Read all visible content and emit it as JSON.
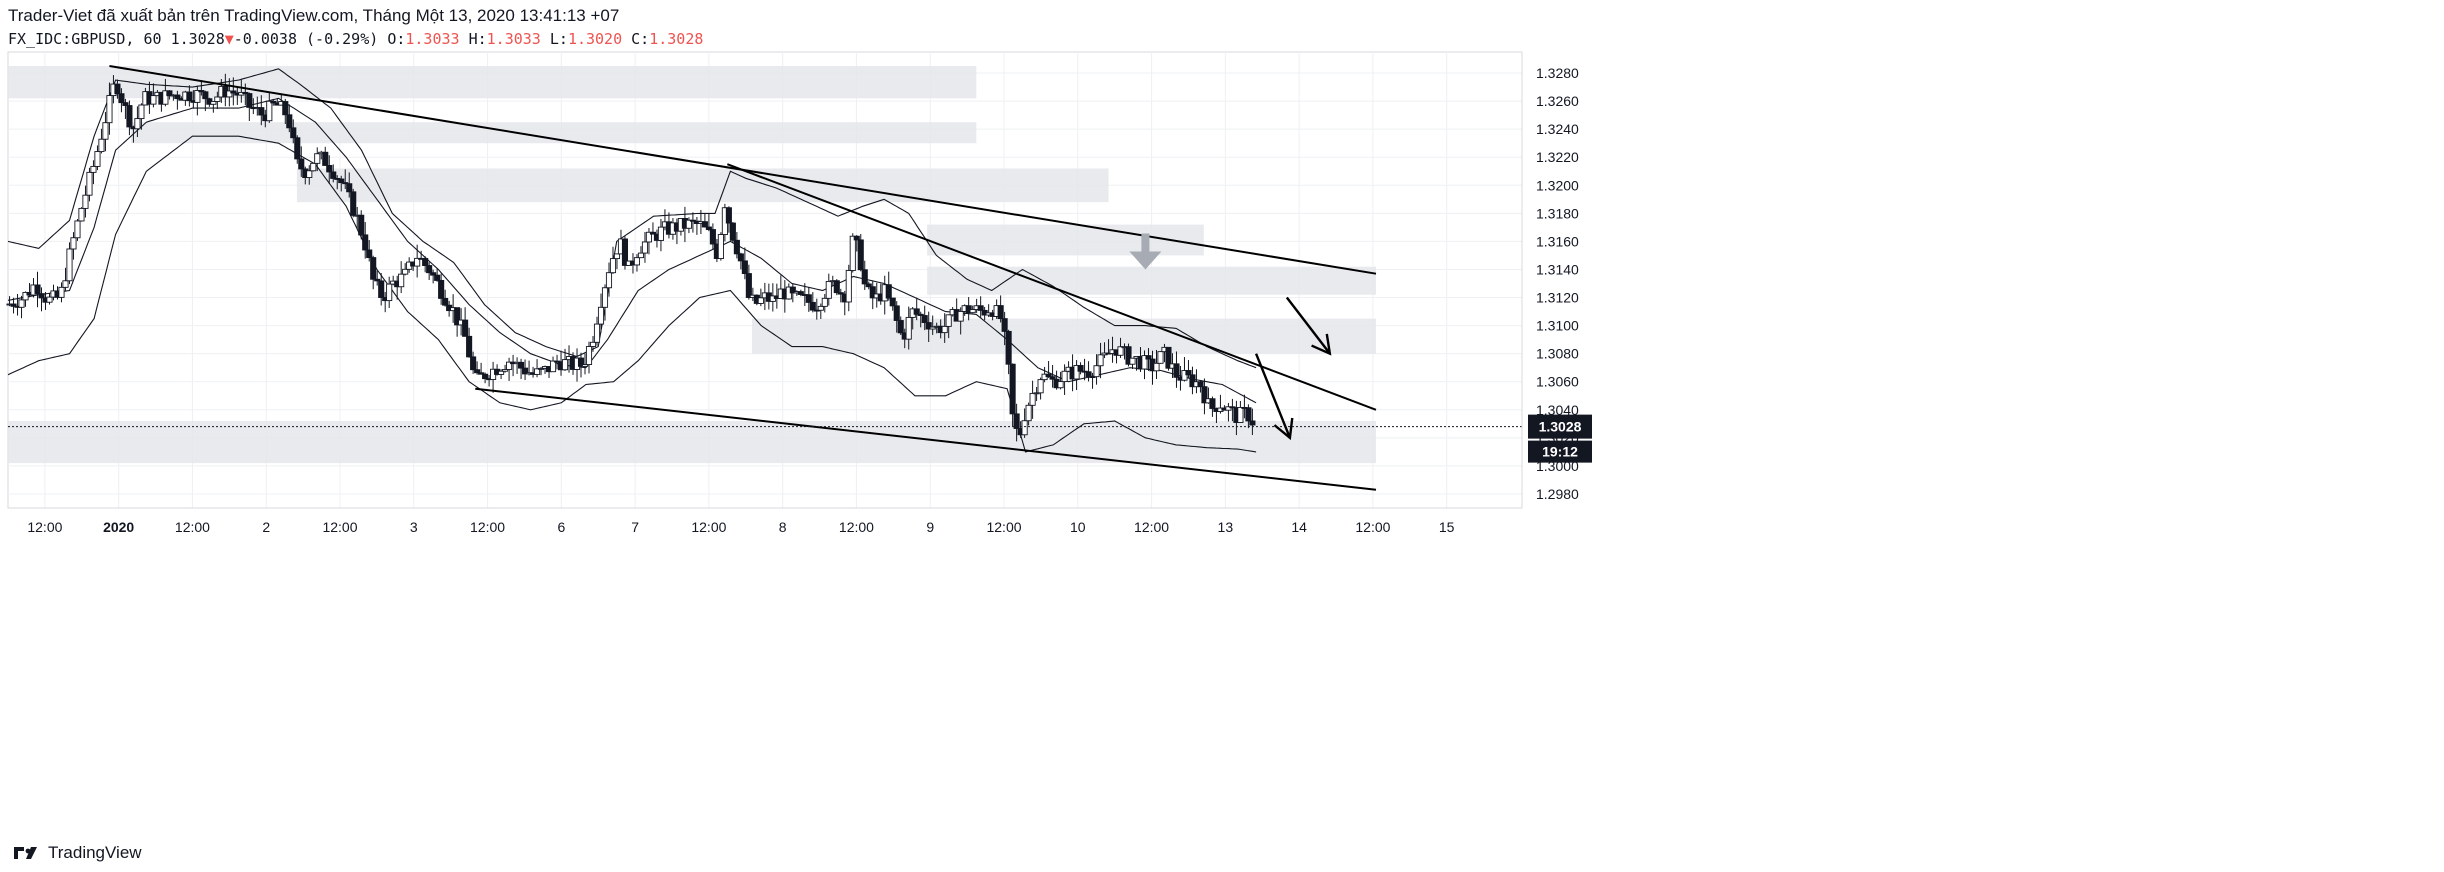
{
  "header": {
    "publisher_line": "Trader-Viet đã xuất bản trên TradingView.com, Tháng Một 13, 2020 13:41:13 +07",
    "symbol": "FX_IDC:GBPUSD, 60",
    "last": "1.3028",
    "change_arrow": "▼",
    "change": "-0.0038 (-0.29%)",
    "o_label": "O:",
    "o_value": "1.3033",
    "h_label": "H:",
    "h_value": "1.3033",
    "l_label": "L:",
    "l_value": "1.3020",
    "c_label": "C:",
    "c_value": "1.3028"
  },
  "footer": {
    "brand": "TradingView"
  },
  "colors": {
    "up": "#ffffff",
    "down": "#131722",
    "wick": "#131722",
    "zone": "#e4e6ea",
    "grid": "#eef0f3",
    "line": "#000000",
    "band": "#131722",
    "arrow_gray": "#a7abb3",
    "price_tag": "#131722"
  },
  "chart_data": {
    "type": "candlestick",
    "title": "",
    "xlabel": "",
    "ylabel": "",
    "ylim": [
      1.297,
      1.3295
    ],
    "x_ticks": [
      "12:00",
      "2020",
      "12:00",
      "2",
      "12:00",
      "3",
      "12:00",
      "6",
      "7",
      "12:00",
      "8",
      "12:00",
      "9",
      "12:00",
      "10",
      "12:00",
      "13",
      "14",
      "12:00",
      "15"
    ],
    "x_tick_index": [
      24,
      72,
      120,
      168,
      216,
      264,
      312,
      360,
      408,
      456,
      504,
      552,
      600,
      648,
      696,
      744,
      792,
      840,
      888,
      936
    ],
    "y_ticks": [
      "1.3280",
      "1.3260",
      "1.3240",
      "1.3220",
      "1.3200",
      "1.3180",
      "1.3160",
      "1.3140",
      "1.3120",
      "1.3100",
      "1.3080",
      "1.3060",
      "1.3040",
      "1.3020",
      "1.3000",
      "1.2980"
    ],
    "y_tick_values": [
      1.328,
      1.326,
      1.324,
      1.322,
      1.32,
      1.318,
      1.316,
      1.314,
      1.312,
      1.31,
      1.308,
      1.306,
      1.304,
      1.302,
      1.3,
      1.298
    ],
    "bar_index_range": [
      0,
      985
    ],
    "price_close_label": "1.3028",
    "price_close_value": 1.3028,
    "countdown_label": "19:12",
    "price_path": [
      [
        0,
        1.3115
      ],
      [
        10,
        1.312
      ],
      [
        18,
        1.313
      ],
      [
        26,
        1.3118
      ],
      [
        34,
        1.312
      ],
      [
        40,
        1.315
      ],
      [
        48,
        1.3185
      ],
      [
        56,
        1.3215
      ],
      [
        64,
        1.325
      ],
      [
        70,
        1.3275
      ],
      [
        76,
        1.3255
      ],
      [
        82,
        1.324
      ],
      [
        88,
        1.3262
      ],
      [
        96,
        1.3262
      ],
      [
        110,
        1.3265
      ],
      [
        122,
        1.3265
      ],
      [
        134,
        1.3262
      ],
      [
        142,
        1.3268
      ],
      [
        150,
        1.3265
      ],
      [
        158,
        1.3255
      ],
      [
        166,
        1.325
      ],
      [
        174,
        1.3258
      ],
      [
        182,
        1.325
      ],
      [
        188,
        1.3215
      ],
      [
        194,
        1.321
      ],
      [
        200,
        1.322
      ],
      [
        206,
        1.3218
      ],
      [
        212,
        1.321
      ],
      [
        218,
        1.32
      ],
      [
        226,
        1.318
      ],
      [
        232,
        1.316
      ],
      [
        238,
        1.313
      ],
      [
        244,
        1.312
      ],
      [
        250,
        1.313
      ],
      [
        258,
        1.3135
      ],
      [
        266,
        1.315
      ],
      [
        274,
        1.314
      ],
      [
        282,
        1.3125
      ],
      [
        290,
        1.311
      ],
      [
        298,
        1.309
      ],
      [
        304,
        1.306
      ],
      [
        310,
        1.3065
      ],
      [
        318,
        1.307
      ],
      [
        326,
        1.3075
      ],
      [
        334,
        1.307
      ],
      [
        342,
        1.3065
      ],
      [
        350,
        1.3068
      ],
      [
        358,
        1.3075
      ],
      [
        366,
        1.3072
      ],
      [
        374,
        1.3072
      ],
      [
        380,
        1.309
      ],
      [
        386,
        1.312
      ],
      [
        392,
        1.3145
      ],
      [
        398,
        1.316
      ],
      [
        404,
        1.314
      ],
      [
        410,
        1.3155
      ],
      [
        418,
        1.3162
      ],
      [
        426,
        1.3168
      ],
      [
        434,
        1.317
      ],
      [
        442,
        1.3172
      ],
      [
        450,
        1.3172
      ],
      [
        456,
        1.3165
      ],
      [
        462,
        1.315
      ],
      [
        466,
        1.319
      ],
      [
        470,
        1.317
      ],
      [
        476,
        1.315
      ],
      [
        482,
        1.312
      ],
      [
        486,
        1.3115
      ],
      [
        492,
        1.312
      ],
      [
        498,
        1.3118
      ],
      [
        504,
        1.3125
      ],
      [
        510,
        1.312
      ],
      [
        518,
        1.3118
      ],
      [
        526,
        1.3115
      ],
      [
        532,
        1.3125
      ],
      [
        538,
        1.313
      ],
      [
        544,
        1.312
      ],
      [
        550,
        1.3162
      ],
      [
        554,
        1.315
      ],
      [
        558,
        1.3125
      ],
      [
        564,
        1.3118
      ],
      [
        570,
        1.3125
      ],
      [
        576,
        1.311
      ],
      [
        582,
        1.309
      ],
      [
        588,
        1.311
      ],
      [
        596,
        1.3105
      ],
      [
        604,
        1.3098
      ],
      [
        610,
        1.31
      ],
      [
        618,
        1.311
      ],
      [
        626,
        1.3112
      ],
      [
        634,
        1.311
      ],
      [
        640,
        1.3113
      ],
      [
        646,
        1.3105
      ],
      [
        650,
        1.308
      ],
      [
        654,
        1.303
      ],
      [
        658,
        1.302
      ],
      [
        662,
        1.304
      ],
      [
        666,
        1.305
      ],
      [
        672,
        1.3065
      ],
      [
        680,
        1.306
      ],
      [
        688,
        1.3065
      ],
      [
        696,
        1.3068
      ],
      [
        704,
        1.3068
      ],
      [
        712,
        1.3075
      ],
      [
        720,
        1.3085
      ],
      [
        728,
        1.3078
      ],
      [
        736,
        1.3075
      ],
      [
        744,
        1.307
      ],
      [
        752,
        1.308
      ],
      [
        760,
        1.3065
      ],
      [
        768,
        1.3062
      ],
      [
        776,
        1.3058
      ],
      [
        782,
        1.304
      ],
      [
        788,
        1.3045
      ],
      [
        794,
        1.304
      ],
      [
        800,
        1.3035
      ],
      [
        806,
        1.3038
      ],
      [
        812,
        1.3028
      ]
    ],
    "bollinger_upper": [
      [
        0,
        1.316
      ],
      [
        20,
        1.3155
      ],
      [
        40,
        1.3175
      ],
      [
        56,
        1.3235
      ],
      [
        70,
        1.3275
      ],
      [
        90,
        1.3272
      ],
      [
        120,
        1.327
      ],
      [
        150,
        1.3275
      ],
      [
        176,
        1.3283
      ],
      [
        190,
        1.3272
      ],
      [
        210,
        1.3255
      ],
      [
        230,
        1.3225
      ],
      [
        250,
        1.318
      ],
      [
        270,
        1.316
      ],
      [
        290,
        1.3145
      ],
      [
        310,
        1.3115
      ],
      [
        330,
        1.3095
      ],
      [
        350,
        1.3085
      ],
      [
        370,
        1.3078
      ],
      [
        384,
        1.3085
      ],
      [
        396,
        1.316
      ],
      [
        420,
        1.3178
      ],
      [
        450,
        1.318
      ],
      [
        460,
        1.318
      ],
      [
        470,
        1.321
      ],
      [
        480,
        1.3205
      ],
      [
        500,
        1.3198
      ],
      [
        520,
        1.3188
      ],
      [
        540,
        1.3178
      ],
      [
        556,
        1.3185
      ],
      [
        570,
        1.319
      ],
      [
        586,
        1.318
      ],
      [
        604,
        1.315
      ],
      [
        624,
        1.3133
      ],
      [
        640,
        1.3125
      ],
      [
        660,
        1.314
      ],
      [
        680,
        1.3128
      ],
      [
        700,
        1.3113
      ],
      [
        720,
        1.31
      ],
      [
        740,
        1.31
      ],
      [
        760,
        1.3098
      ],
      [
        780,
        1.3085
      ],
      [
        800,
        1.3075
      ],
      [
        812,
        1.307
      ]
    ],
    "bollinger_middle": [
      [
        0,
        1.3118
      ],
      [
        20,
        1.3122
      ],
      [
        40,
        1.3125
      ],
      [
        56,
        1.317
      ],
      [
        70,
        1.3225
      ],
      [
        90,
        1.3245
      ],
      [
        120,
        1.3255
      ],
      [
        150,
        1.3255
      ],
      [
        176,
        1.3262
      ],
      [
        200,
        1.3245
      ],
      [
        220,
        1.322
      ],
      [
        240,
        1.319
      ],
      [
        260,
        1.316
      ],
      [
        280,
        1.314
      ],
      [
        300,
        1.3115
      ],
      [
        320,
        1.3095
      ],
      [
        340,
        1.308
      ],
      [
        360,
        1.3072
      ],
      [
        376,
        1.307
      ],
      [
        390,
        1.309
      ],
      [
        410,
        1.3125
      ],
      [
        430,
        1.314
      ],
      [
        450,
        1.315
      ],
      [
        470,
        1.316
      ],
      [
        490,
        1.3148
      ],
      [
        510,
        1.313
      ],
      [
        530,
        1.3125
      ],
      [
        550,
        1.3135
      ],
      [
        570,
        1.313
      ],
      [
        590,
        1.312
      ],
      [
        610,
        1.311
      ],
      [
        630,
        1.3108
      ],
      [
        650,
        1.309
      ],
      [
        670,
        1.307
      ],
      [
        690,
        1.306
      ],
      [
        710,
        1.3065
      ],
      [
        730,
        1.307
      ],
      [
        750,
        1.3068
      ],
      [
        770,
        1.3062
      ],
      [
        790,
        1.3058
      ],
      [
        812,
        1.3045
      ]
    ],
    "bollinger_lower": [
      [
        0,
        1.3065
      ],
      [
        20,
        1.3075
      ],
      [
        40,
        1.308
      ],
      [
        56,
        1.3105
      ],
      [
        70,
        1.3165
      ],
      [
        90,
        1.321
      ],
      [
        120,
        1.3235
      ],
      [
        150,
        1.3235
      ],
      [
        176,
        1.323
      ],
      [
        200,
        1.3215
      ],
      [
        220,
        1.3185
      ],
      [
        240,
        1.314
      ],
      [
        260,
        1.311
      ],
      [
        280,
        1.309
      ],
      [
        300,
        1.306
      ],
      [
        320,
        1.3045
      ],
      [
        340,
        1.304
      ],
      [
        360,
        1.3045
      ],
      [
        376,
        1.3058
      ],
      [
        394,
        1.306
      ],
      [
        410,
        1.3075
      ],
      [
        430,
        1.31
      ],
      [
        450,
        1.312
      ],
      [
        470,
        1.3125
      ],
      [
        490,
        1.31
      ],
      [
        510,
        1.3085
      ],
      [
        530,
        1.3085
      ],
      [
        550,
        1.308
      ],
      [
        570,
        1.307
      ],
      [
        590,
        1.305
      ],
      [
        610,
        1.305
      ],
      [
        630,
        1.306
      ],
      [
        650,
        1.3055
      ],
      [
        662,
        1.301
      ],
      [
        680,
        1.3015
      ],
      [
        700,
        1.303
      ],
      [
        720,
        1.3032
      ],
      [
        740,
        1.302
      ],
      [
        760,
        1.3015
      ],
      [
        780,
        1.3013
      ],
      [
        800,
        1.3012
      ],
      [
        812,
        1.301
      ]
    ],
    "zones": [
      {
        "x0": 0,
        "x1": 630,
        "y0": 1.3262,
        "y1": 1.3285
      },
      {
        "x0": 80,
        "x1": 630,
        "y0": 1.323,
        "y1": 1.3245
      },
      {
        "x0": 188,
        "x1": 716,
        "y0": 1.3188,
        "y1": 1.3212
      },
      {
        "x0": 598,
        "x1": 778,
        "y0": 1.315,
        "y1": 1.3172
      },
      {
        "x0": 598,
        "x1": 890,
        "y0": 1.3122,
        "y1": 1.3142
      },
      {
        "x0": 484,
        "x1": 890,
        "y0": 1.308,
        "y1": 1.3105
      },
      {
        "x0": 0,
        "x1": 890,
        "y0": 1.3002,
        "y1": 1.3032
      }
    ],
    "trendlines": [
      {
        "from": [
          66,
          1.3285
        ],
        "to": [
          890,
          1.3137
        ]
      },
      {
        "from": [
          304,
          1.3055
        ],
        "to": [
          890,
          1.2983
        ]
      },
      {
        "from": [
          468,
          1.3215
        ],
        "to": [
          890,
          1.304
        ]
      }
    ],
    "arrows": [
      {
        "from": [
          832,
          1.312
        ],
        "to": [
          860,
          1.308
        ]
      },
      {
        "from": [
          812,
          1.308
        ],
        "to": [
          834,
          1.302
        ]
      }
    ],
    "down_marker": {
      "x": 740,
      "y": 1.315
    }
  }
}
